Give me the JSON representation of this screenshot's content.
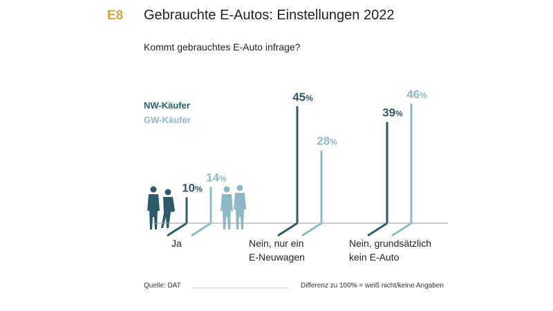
{
  "header": {
    "code": "E8",
    "title": "Gebrauchte E-Autos: Einstellungen 2022",
    "question": "Kommt gebrauchtes E-Auto infrage?"
  },
  "legend": {
    "nw": "NW-Käufer",
    "gw": "GW-Käufer"
  },
  "colors": {
    "nw": "#2c5a6b",
    "gw": "#8fb8c6",
    "accent": "#d1a83f",
    "axis": "#9a9a9a"
  },
  "footer": {
    "source": "Quelle: DAT",
    "note": "Differenz zu 100% = weiß nicht/keine Angaben"
  },
  "chart_data": {
    "type": "bar",
    "title": "Gebrauchte E-Autos: Einstellungen 2022",
    "subtitle": "Kommt gebrauchtes E-Auto infrage?",
    "categories": [
      [
        "Ja"
      ],
      [
        "Nein, nur ein",
        "E-Neuwagen"
      ],
      [
        "Nein, grundsätzlich",
        "kein E-Auto"
      ]
    ],
    "series": [
      {
        "name": "NW-Käufer",
        "values": [
          10,
          45,
          39
        ]
      },
      {
        "name": "GW-Käufer",
        "values": [
          14,
          28,
          46
        ]
      }
    ],
    "unit": "%",
    "ylim": [
      0,
      50
    ],
    "grid": false,
    "legend_position": "left"
  }
}
